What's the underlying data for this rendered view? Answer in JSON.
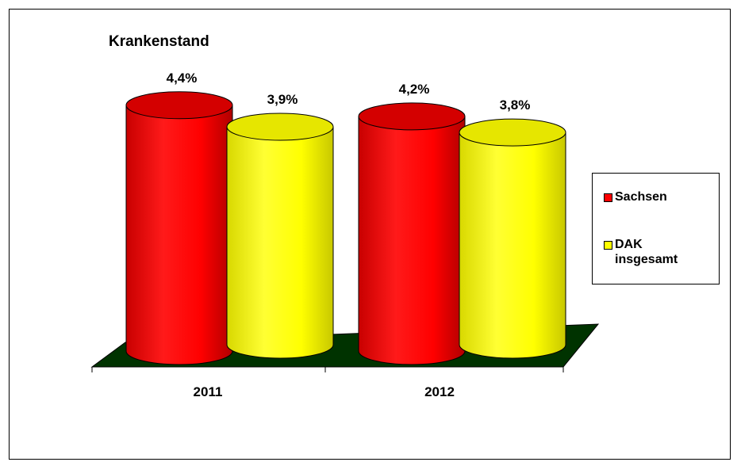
{
  "chart_data": {
    "type": "bar",
    "title": "Krankenstand",
    "categories": [
      "2011",
      "2012"
    ],
    "series": [
      {
        "name": "Sachsen",
        "values": [
          4.4,
          4.2
        ],
        "labels": [
          "4,4%",
          "4,2%"
        ],
        "color": "#ff0000"
      },
      {
        "name": "DAK insgesamt",
        "values": [
          3.9,
          3.8
        ],
        "labels": [
          "3,9%",
          "3,8%"
        ],
        "color": "#ffff00"
      }
    ],
    "legend": {
      "placement": "right",
      "items": [
        "Sachsen",
        "DAK insgesamt"
      ]
    },
    "floor_color": "#003300"
  }
}
